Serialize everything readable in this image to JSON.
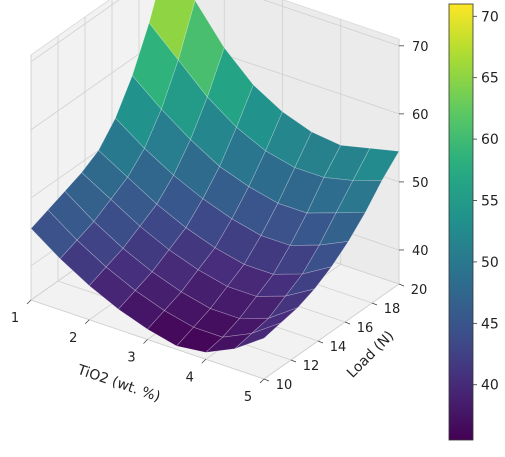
{
  "chart_data": {
    "type": "surface",
    "title": "",
    "xlabel": "TiO2 (wt. %)",
    "ylabel": "Load (N)",
    "zlabel": "",
    "x": [
      1,
      1.5,
      2,
      2.5,
      3,
      3.5,
      4,
      4.5,
      5
    ],
    "y": [
      10,
      11.25,
      12.5,
      13.75,
      15,
      16.25,
      17.5,
      18.75,
      20
    ],
    "z": [
      [
        45.5,
        42.5,
        40.0,
        38.0,
        36.5,
        35.5,
        36.0,
        38.0,
        41.0
      ],
      [
        46.5,
        43.5,
        41.0,
        39.0,
        37.5,
        36.5,
        36.5,
        38.5,
        41.5
      ],
      [
        47.5,
        44.5,
        42.0,
        40.0,
        38.5,
        37.5,
        37.5,
        39.0,
        42.0
      ],
      [
        48.5,
        46.0,
        43.5,
        41.5,
        40.0,
        39.0,
        39.0,
        40.5,
        43.0
      ],
      [
        50.0,
        47.5,
        45.0,
        43.0,
        41.5,
        40.5,
        40.5,
        42.0,
        44.5
      ],
      [
        53.0,
        50.0,
        47.5,
        45.5,
        44.0,
        43.0,
        43.0,
        44.5,
        46.5
      ],
      [
        57.5,
        54.0,
        51.0,
        48.5,
        47.0,
        46.0,
        46.0,
        47.5,
        49.0
      ],
      [
        63.5,
        59.5,
        55.5,
        52.5,
        50.5,
        49.5,
        49.5,
        50.5,
        52.0
      ],
      [
        71.0,
        66.5,
        61.0,
        57.0,
        54.5,
        53.0,
        52.5,
        53.5,
        54.5
      ]
    ],
    "x_ticks": [
      1,
      2,
      3,
      4,
      5
    ],
    "y_ticks": [
      10,
      12,
      14,
      16,
      18,
      20
    ],
    "z_ticks": [
      40,
      50,
      60,
      70
    ],
    "xlim": [
      1,
      5
    ],
    "ylim": [
      10,
      20
    ],
    "zlim": [
      35,
      71
    ],
    "colorbar": {
      "ticks": [
        40,
        45,
        50,
        55,
        60,
        65,
        70
      ],
      "range": [
        35.5,
        71.0
      ],
      "colormap": "viridis"
    },
    "grid": true
  }
}
